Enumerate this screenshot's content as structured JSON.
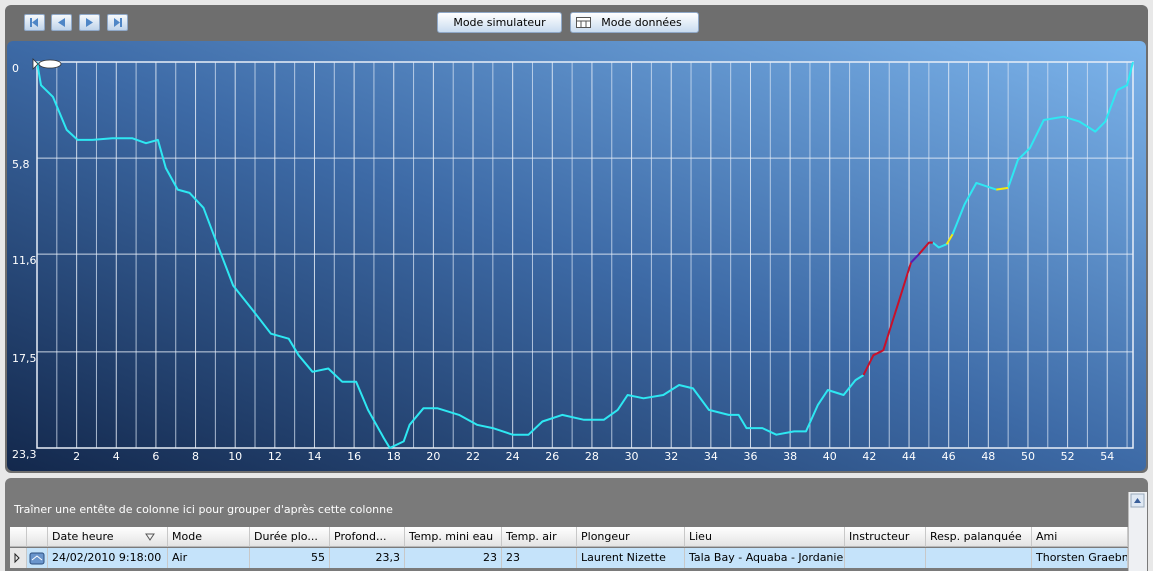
{
  "toolbar": {
    "buttons": [
      "Mode simulateur",
      "Mode données"
    ]
  },
  "chart_data": {
    "type": "line",
    "xlim": [
      0,
      55.3
    ],
    "xticks": [
      2,
      4,
      6,
      8,
      10,
      12,
      14,
      16,
      18,
      20,
      22,
      24,
      26,
      28,
      30,
      32,
      34,
      36,
      38,
      40,
      42,
      44,
      46,
      48,
      50,
      52,
      54
    ],
    "ylim": [
      0,
      23.3
    ],
    "y_inverted": true,
    "yticks": [
      0,
      {
        "value": 5.8,
        "label": "5,8"
      },
      {
        "value": 11.6,
        "label": "11,6"
      },
      {
        "value": 17.5,
        "label": "17,5"
      },
      {
        "value": 23.3,
        "label": "23,3"
      }
    ],
    "grid": true,
    "minor_grid": true,
    "series": [
      {
        "color": "#2ee8f2",
        "x": [
          0,
          0.2,
          0.8,
          1.5,
          2.05,
          2.8,
          3.8,
          4.8,
          5.5,
          6.1,
          6.5,
          7.1,
          7.7,
          8.4,
          9.0,
          9.9,
          10.9,
          11.8,
          12.7,
          13.2,
          13.9,
          14.7,
          15.4,
          16.1,
          16.7,
          17.5,
          17.8,
          18.5,
          18.8,
          19.5,
          20.2,
          21.3,
          22.2,
          23.0,
          24.0,
          24.8,
          25.5,
          26.5,
          27.6,
          28.6,
          29.3,
          29.8,
          30.6,
          31.6,
          32.4,
          33.1,
          33.9,
          34.9,
          35.4,
          35.8,
          36.6,
          37.3,
          38.2,
          38.8,
          39.4,
          39.9,
          40.7,
          41.3,
          41.7,
          null,
          45.2,
          45.5,
          45.9,
          null,
          46.2,
          46.8,
          47.4,
          48.4,
          null,
          49.0,
          49.5,
          50.1,
          50.8,
          51.8,
          52.6,
          53.4,
          53.9,
          54.5,
          55.0,
          55.3
        ],
        "values": [
          0,
          1.4,
          2.1,
          4.1,
          4.7,
          4.7,
          4.6,
          4.6,
          4.9,
          4.7,
          6.4,
          7.7,
          7.9,
          8.8,
          10.7,
          13.5,
          15.0,
          16.4,
          16.7,
          17.7,
          18.7,
          18.5,
          19.3,
          19.3,
          21.0,
          22.7,
          23.3,
          22.9,
          21.9,
          20.9,
          20.9,
          21.3,
          21.9,
          22.1,
          22.5,
          22.5,
          21.7,
          21.3,
          21.6,
          21.6,
          21.0,
          20.1,
          20.3,
          20.1,
          19.5,
          19.7,
          21.0,
          21.3,
          21.3,
          22.1,
          22.1,
          22.5,
          22.3,
          22.3,
          20.7,
          19.8,
          20.1,
          19.2,
          18.9,
          null,
          10.9,
          11.2,
          11.0,
          null,
          10.4,
          8.6,
          7.3,
          7.7,
          null,
          7.6,
          5.9,
          5.2,
          3.5,
          3.3,
          3.6,
          4.2,
          3.6,
          1.7,
          1.4,
          0
        ]
      },
      {
        "color": "#c8102a",
        "x": [
          41.7,
          42.2,
          42.7,
          43.5,
          44.1,
          null,
          44.5,
          45.0,
          45.2
        ],
        "values": [
          18.9,
          17.7,
          17.4,
          14.4,
          12.1,
          null,
          11.6,
          10.9,
          10.9
        ]
      },
      {
        "color": "#5a1ab4",
        "x": [
          44.1,
          44.5
        ],
        "values": [
          12.1,
          11.6
        ]
      },
      {
        "color": "#f4ea10",
        "x": [
          45.9,
          46.2,
          null,
          48.4,
          49.0
        ],
        "values": [
          11.0,
          10.4,
          null,
          7.7,
          7.6
        ]
      }
    ]
  },
  "grid_panel": {
    "group_hint": "Traîner une entête de colonne ici pour grouper d'après cette colonne",
    "columns": [
      "Date heure",
      "Mode",
      "Durée plo...",
      "Profond...",
      "Temp. mini eau",
      "Temp. air",
      "Plongeur",
      "Lieu",
      "Instructeur",
      "Resp. palanquée",
      "Ami"
    ],
    "rows": [
      [
        "24/02/2010 9:18:00",
        "Air",
        "55",
        "23,3",
        "23",
        "23",
        "Laurent Nizette",
        "Tala Bay - Aquaba - Jordanie ...",
        null,
        null,
        "Thorsten Graebner"
      ]
    ]
  }
}
